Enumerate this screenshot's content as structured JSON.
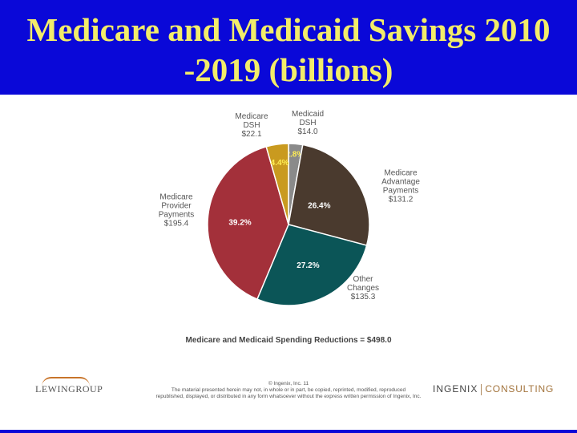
{
  "title": {
    "line1": "Medicare and Medicaid Savings 2010",
    "line2": "-2019 (billions)"
  },
  "chart_data": {
    "type": "pie",
    "caption": "Medicare and Medicaid Spending Reductions = $498.0",
    "slices": [
      {
        "name": "Medicaid DSH",
        "name_lines": [
          "Medicaid",
          "DSH"
        ],
        "value_label": "$14.0",
        "value": 14.0,
        "pct_label": "2.8%",
        "pct": 2.8,
        "color": "#8a8a8a"
      },
      {
        "name": "Medicare Advantage Payments",
        "name_lines": [
          "Medicare",
          "Advantage",
          "Payments"
        ],
        "value_label": "$131.2",
        "value": 131.2,
        "pct_label": "26.4%",
        "pct": 26.4,
        "color": "#4a3a2e"
      },
      {
        "name": "Other Changes",
        "name_lines": [
          "Other",
          "Changes"
        ],
        "value_label": "$135.3",
        "value": 135.3,
        "pct_label": "27.2%",
        "pct": 27.2,
        "color": "#0b5557"
      },
      {
        "name": "Medicare Provider Payments",
        "name_lines": [
          "Medicare",
          "Provider",
          "Payments"
        ],
        "value_label": "$195.4",
        "value": 195.4,
        "pct_label": "39.2%",
        "pct": 39.2,
        "color": "#a3303a"
      },
      {
        "name": "Medicare DSH",
        "name_lines": [
          "Medicare",
          "DSH"
        ],
        "value_label": "$22.1",
        "value": 22.1,
        "pct_label": "4.4%",
        "pct": 4.4,
        "color": "#c99a1f"
      }
    ]
  },
  "footer": {
    "left_logo": "LEWINGROUP",
    "copyright_line1": "© Ingenix, Inc. 11",
    "copyright_line2": "The material presented herein may not, in whole or in part, be copied, reprinted, modified, reproduced",
    "copyright_line3": "republished, displayed, or distributed in any form whatsoever without the express written permission of Ingenix, Inc.",
    "right_logo_a": "INGENIX",
    "right_logo_b": "CONSULTING"
  }
}
